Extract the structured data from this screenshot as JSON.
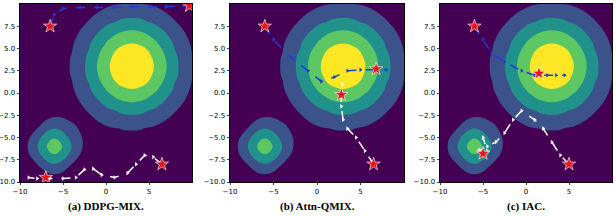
{
  "chart_data": [
    {
      "type": "contour",
      "title": "(a) DDPG-MIX.",
      "xlim": [
        -10,
        10
      ],
      "ylim": [
        -10,
        10
      ],
      "xticks": [
        {
          "value": -10,
          "label": "−10"
        },
        {
          "value": -5,
          "label": "−5"
        },
        0,
        5
      ],
      "yticks": [
        {
          "value": -10,
          "label": "−10.0"
        },
        {
          "value": -7.5,
          "label": "−7.5"
        },
        {
          "value": -5,
          "label": "−5.0"
        },
        {
          "value": -2.5,
          "label": "−2.5"
        },
        {
          "value": 0,
          "label": "0.0"
        },
        2.5,
        {
          "value": 5,
          "label": "5.0"
        },
        7.5
      ],
      "field": {
        "x": [
          -10,
          -8,
          -6,
          -4,
          -2,
          0,
          2,
          4,
          6,
          8,
          10
        ],
        "y": [
          -10,
          -8,
          -6,
          -4,
          -2,
          0,
          2,
          4,
          6,
          8,
          10
        ],
        "cells": [
          [
            0,
            0.03,
            0.05,
            0.03,
            0.01,
            0,
            0,
            0,
            0,
            0,
            0
          ],
          [
            0.03,
            0.2,
            0.39,
            0.2,
            0.04,
            0.02,
            0.02,
            0.02,
            0.02,
            0.01,
            0.01
          ],
          [
            0.05,
            0.39,
            0.76,
            0.4,
            0.09,
            0.06,
            0.08,
            0.08,
            0.06,
            0.04,
            0.02
          ],
          [
            0.03,
            0.2,
            0.4,
            0.24,
            0.13,
            0.17,
            0.21,
            0.21,
            0.16,
            0.1,
            0.05
          ],
          [
            0.01,
            0.04,
            0.09,
            0.13,
            0.21,
            0.35,
            0.44,
            0.44,
            0.35,
            0.21,
            0.1
          ],
          [
            0,
            0.02,
            0.06,
            0.16,
            0.35,
            0.57,
            0.73,
            0.73,
            0.57,
            0.35,
            0.16
          ],
          [
            0.01,
            0.02,
            0.08,
            0.21,
            0.44,
            0.73,
            0.94,
            0.94,
            0.73,
            0.44,
            0.21
          ],
          [
            0.01,
            0.02,
            0.08,
            0.21,
            0.44,
            0.73,
            0.94,
            0.94,
            0.73,
            0.44,
            0.21
          ],
          [
            0,
            0.02,
            0.06,
            0.16,
            0.35,
            0.57,
            0.73,
            0.73,
            0.57,
            0.35,
            0.16
          ],
          [
            0,
            0.01,
            0.04,
            0.1,
            0.21,
            0.35,
            0.44,
            0.44,
            0.35,
            0.21,
            0.1
          ],
          [
            0,
            0.01,
            0.02,
            0.05,
            0.1,
            0.16,
            0.21,
            0.21,
            0.16,
            0.1,
            0.05
          ]
        ]
      },
      "series": [
        {
          "color": "#1f3fd6",
          "line_style": "dashed",
          "marker": "triangle",
          "x": [
            -6.5,
            -6,
            -5,
            -3,
            -1,
            1,
            3,
            5,
            7,
            9,
            9.7
          ],
          "y": [
            7.5,
            8.8,
            9.5,
            9.6,
            9.6,
            9.6,
            9.7,
            9.7,
            9.7,
            9.8,
            9.8
          ]
        },
        {
          "color": "#ffffff",
          "line_style": "dashed",
          "marker": "triangle",
          "x": [
            6.5,
            5.5,
            4.5,
            3.5,
            2.5,
            1,
            -0.5,
            -1.5,
            -2.5,
            -3.5,
            -5,
            -6.5,
            -8,
            -9
          ],
          "y": [
            -8,
            -7.2,
            -7,
            -8,
            -9,
            -9.5,
            -9.2,
            -8.5,
            -8.6,
            -9.5,
            -9.6,
            -9.6,
            -9.6,
            -9.5
          ]
        },
        {
          "color": "#e8141c",
          "line_style": "none",
          "marker": "star",
          "x": [
            -6.5,
            9.7,
            -7,
            6.5
          ],
          "y": [
            7.5,
            9.8,
            -9.5,
            -8
          ]
        }
      ]
    },
    {
      "type": "contour",
      "title": "(b) Attn-QMIX.",
      "xlim": [
        -10,
        10
      ],
      "ylim": [
        -10,
        10
      ],
      "xticks": [
        {
          "value": -10,
          "label": "−10"
        },
        {
          "value": -5,
          "label": "−5"
        },
        0,
        5
      ],
      "yticks": [
        {
          "value": -10,
          "label": "−10.0"
        },
        {
          "value": -7.5,
          "label": "−7.5"
        },
        {
          "value": -5,
          "label": "−5.0"
        },
        {
          "value": -2.5,
          "label": "−2.5"
        },
        {
          "value": 0,
          "label": "0.0"
        },
        2.5,
        {
          "value": 5,
          "label": "5.0"
        },
        7.5
      ],
      "field": {
        "x": [
          -10,
          -8,
          -6,
          -4,
          -2,
          0,
          2,
          4,
          6,
          8,
          10
        ],
        "y": [
          -10,
          -8,
          -6,
          -4,
          -2,
          0,
          2,
          4,
          6,
          8,
          10
        ],
        "cells": [
          [
            0,
            0.03,
            0.05,
            0.03,
            0.01,
            0,
            0,
            0,
            0,
            0,
            0
          ],
          [
            0.03,
            0.2,
            0.39,
            0.2,
            0.04,
            0.02,
            0.02,
            0.02,
            0.02,
            0.01,
            0.01
          ],
          [
            0.05,
            0.39,
            0.76,
            0.4,
            0.09,
            0.06,
            0.08,
            0.08,
            0.06,
            0.04,
            0.02
          ],
          [
            0.03,
            0.2,
            0.4,
            0.24,
            0.13,
            0.17,
            0.21,
            0.21,
            0.16,
            0.1,
            0.05
          ],
          [
            0.01,
            0.04,
            0.09,
            0.13,
            0.21,
            0.35,
            0.44,
            0.44,
            0.35,
            0.21,
            0.1
          ],
          [
            0,
            0.02,
            0.06,
            0.16,
            0.35,
            0.57,
            0.73,
            0.73,
            0.57,
            0.35,
            0.16
          ],
          [
            0.01,
            0.02,
            0.08,
            0.21,
            0.44,
            0.73,
            0.94,
            0.94,
            0.73,
            0.44,
            0.21
          ],
          [
            0.01,
            0.02,
            0.08,
            0.21,
            0.44,
            0.73,
            0.94,
            0.94,
            0.73,
            0.44,
            0.21
          ],
          [
            0,
            0.02,
            0.06,
            0.16,
            0.35,
            0.57,
            0.73,
            0.73,
            0.57,
            0.35,
            0.16
          ],
          [
            0,
            0.01,
            0.04,
            0.1,
            0.21,
            0.35,
            0.44,
            0.44,
            0.35,
            0.21,
            0.1
          ],
          [
            0,
            0.01,
            0.02,
            0.05,
            0.1,
            0.16,
            0.21,
            0.21,
            0.16,
            0.1,
            0.05
          ]
        ]
      },
      "series": [
        {
          "color": "#1f3fd6",
          "line_style": "dashed",
          "marker": "triangle",
          "x": [
            -6,
            -5,
            -3,
            -1,
            0.5,
            2,
            3.5,
            5,
            6.5,
            8
          ],
          "y": [
            7.5,
            6,
            4,
            2.5,
            1.3,
            1.8,
            2.5,
            2.6,
            2.6,
            2.6
          ]
        },
        {
          "color": "#ffffff",
          "line_style": "dashed",
          "marker": "triangle",
          "x": [
            6.5,
            5.5,
            4.5,
            3.5,
            3,
            2.8,
            2.8,
            2.9
          ],
          "y": [
            -8,
            -6.5,
            -5,
            -4,
            -3,
            -1.5,
            0,
            1
          ]
        },
        {
          "color": "#e8141c",
          "line_style": "none",
          "marker": "star",
          "x": [
            -6,
            6.8,
            2.8,
            6.5
          ],
          "y": [
            7.5,
            2.7,
            -0.2,
            -8
          ]
        }
      ]
    },
    {
      "type": "contour",
      "title": "(c) IAC.",
      "xlim": [
        -10,
        10
      ],
      "ylim": [
        -10,
        10
      ],
      "xticks": [
        {
          "value": -10,
          "label": "−10"
        },
        {
          "value": -5,
          "label": "−5"
        },
        0,
        5
      ],
      "yticks": [
        {
          "value": -10,
          "label": "−10.0"
        },
        {
          "value": -7.5,
          "label": "−7.5"
        },
        {
          "value": -5,
          "label": "−5.0"
        },
        {
          "value": -2.5,
          "label": "−2.5"
        },
        {
          "value": 0,
          "label": "0.0"
        },
        2.5,
        {
          "value": 5,
          "label": "5.0"
        },
        7.5
      ],
      "field": {
        "x": [
          -10,
          -8,
          -6,
          -4,
          -2,
          0,
          2,
          4,
          6,
          8,
          10
        ],
        "y": [
          -10,
          -8,
          -6,
          -4,
          -2,
          0,
          2,
          4,
          6,
          8,
          10
        ],
        "cells": [
          [
            0,
            0.03,
            0.05,
            0.03,
            0.01,
            0,
            0,
            0,
            0,
            0,
            0
          ],
          [
            0.03,
            0.2,
            0.39,
            0.2,
            0.04,
            0.02,
            0.02,
            0.02,
            0.02,
            0.01,
            0.01
          ],
          [
            0.05,
            0.39,
            0.76,
            0.4,
            0.09,
            0.06,
            0.08,
            0.08,
            0.06,
            0.04,
            0.02
          ],
          [
            0.03,
            0.2,
            0.4,
            0.24,
            0.13,
            0.17,
            0.21,
            0.21,
            0.16,
            0.1,
            0.05
          ],
          [
            0.01,
            0.04,
            0.09,
            0.13,
            0.21,
            0.35,
            0.44,
            0.44,
            0.35,
            0.21,
            0.1
          ],
          [
            0,
            0.02,
            0.06,
            0.16,
            0.35,
            0.57,
            0.73,
            0.73,
            0.57,
            0.35,
            0.16
          ],
          [
            0.01,
            0.02,
            0.08,
            0.21,
            0.44,
            0.73,
            0.94,
            0.94,
            0.73,
            0.44,
            0.21
          ],
          [
            0.01,
            0.02,
            0.08,
            0.21,
            0.44,
            0.73,
            0.94,
            0.94,
            0.73,
            0.44,
            0.21
          ],
          [
            0,
            0.02,
            0.06,
            0.16,
            0.35,
            0.57,
            0.73,
            0.73,
            0.57,
            0.35,
            0.16
          ],
          [
            0,
            0.01,
            0.04,
            0.1,
            0.21,
            0.35,
            0.44,
            0.44,
            0.35,
            0.21,
            0.1
          ],
          [
            0,
            0.01,
            0.02,
            0.05,
            0.1,
            0.16,
            0.21,
            0.21,
            0.16,
            0.1,
            0.05
          ]
        ]
      },
      "series": [
        {
          "color": "#1f3fd6",
          "line_style": "dashed",
          "marker": "triangle",
          "x": [
            -6,
            -5,
            -4,
            -2.5,
            -0.5,
            1,
            2.5,
            3.5,
            4.5
          ],
          "y": [
            7.5,
            6,
            4.5,
            3.5,
            2.5,
            2,
            2,
            2,
            2
          ]
        },
        {
          "color": "#ffffff",
          "line_style": "dashed",
          "marker": "triangle",
          "x": [
            5,
            4,
            3,
            2,
            1,
            -0.5,
            -1.5,
            -2.5,
            -3.5,
            -4.5,
            -5.5,
            -5,
            -4.5,
            -5
          ],
          "y": [
            -8,
            -7,
            -5.5,
            -4,
            -3,
            -2,
            -3,
            -4.5,
            -5.5,
            -6,
            -6.5,
            -5,
            -6.5,
            -7
          ]
        },
        {
          "color": "#e8141c",
          "line_style": "none",
          "marker": "star",
          "x": [
            -6,
            1.5,
            -5,
            5
          ],
          "y": [
            7.5,
            2.2,
            -6.8,
            -8
          ]
        }
      ]
    }
  ]
}
